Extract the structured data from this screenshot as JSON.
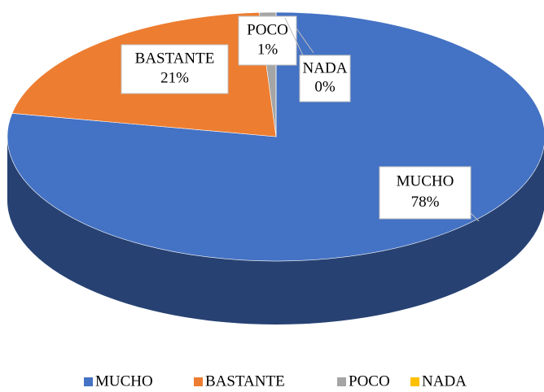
{
  "chart_data": {
    "type": "pie",
    "categories": [
      "MUCHO",
      "BASTANTE",
      "POCO",
      "NADA"
    ],
    "values": [
      78,
      21,
      1,
      0
    ],
    "value_labels": [
      "78%",
      "21%",
      "1%",
      "0%"
    ],
    "colors": [
      "#4472c4",
      "#ed7d31",
      "#a5a5a5",
      "#ffc000"
    ],
    "legend": "bottom"
  }
}
